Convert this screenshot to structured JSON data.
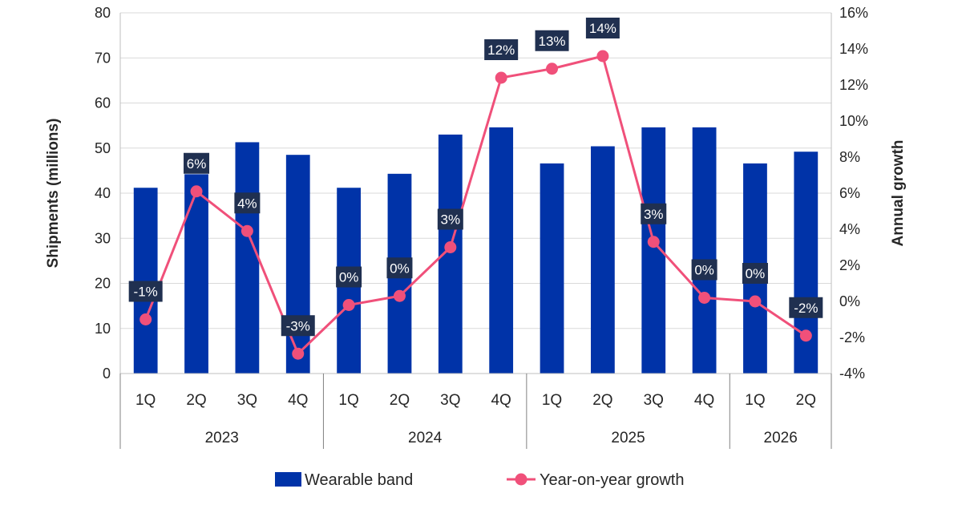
{
  "chart_data": {
    "type": "bar",
    "categories": [
      "1Q",
      "2Q",
      "3Q",
      "4Q",
      "1Q",
      "2Q",
      "3Q",
      "4Q",
      "1Q",
      "2Q",
      "3Q",
      "4Q",
      "1Q",
      "2Q"
    ],
    "groups": [
      {
        "label": "2023",
        "count": 4
      },
      {
        "label": "2024",
        "count": 4
      },
      {
        "label": "2025",
        "count": 4
      },
      {
        "label": "2026",
        "count": 2
      }
    ],
    "series": [
      {
        "name": "Wearable band",
        "type": "bar",
        "axis": "left",
        "color": "#0033a8",
        "values": [
          41.2,
          44.2,
          51.3,
          48.5,
          41.2,
          44.3,
          53.0,
          54.6,
          46.6,
          50.4,
          54.6,
          54.6,
          46.6,
          49.2
        ]
      },
      {
        "name": "Year-on-year growth",
        "type": "line",
        "axis": "right",
        "color": "#f0507a",
        "values": [
          -1.0,
          6.1,
          3.9,
          -2.9,
          -0.2,
          0.3,
          3.0,
          12.4,
          12.9,
          13.6,
          3.3,
          0.2,
          0.0,
          -1.9
        ],
        "labels": [
          "-1%",
          "6%",
          "4%",
          "-3%",
          "0%",
          "0%",
          "3%",
          "12%",
          "13%",
          "14%",
          "3%",
          "0%",
          "0%",
          "-2%"
        ]
      }
    ],
    "ylabel": "Shipments (millions)",
    "y2label": "Annual growth",
    "ylim": [
      0,
      80
    ],
    "yticks": [
      "0",
      "10",
      "20",
      "30",
      "40",
      "50",
      "60",
      "70",
      "80"
    ],
    "y2lim": [
      -4,
      16
    ],
    "y2ticks": [
      "-4%",
      "-2%",
      "0%",
      "2%",
      "4%",
      "6%",
      "8%",
      "10%",
      "12%",
      "14%",
      "16%"
    ],
    "grid": true,
    "legend_position": "bottom"
  }
}
